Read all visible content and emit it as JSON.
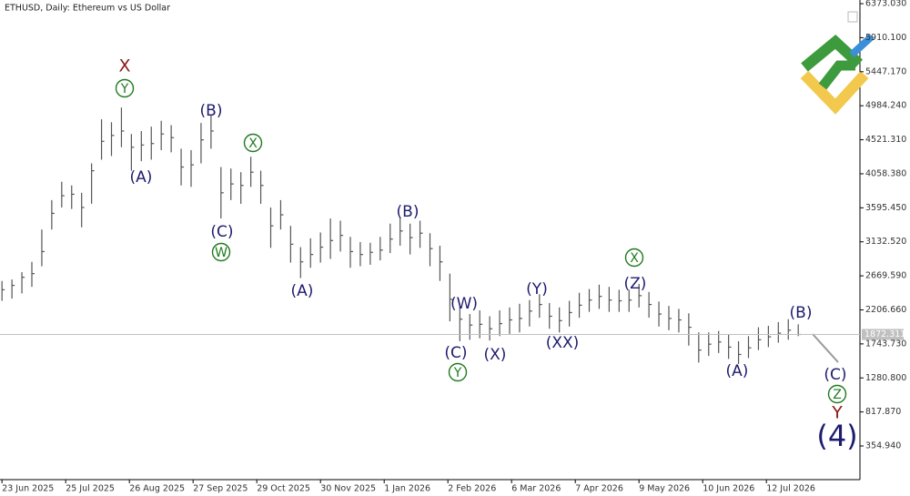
{
  "chart_data": {
    "type": "hlc",
    "title": "ETHUSD, Daily:  Ethereum vs US Dollar",
    "color": "#555555",
    "x": [
      "2025-06-23",
      "2025-06-28",
      "2025-07-03",
      "2025-07-08",
      "2025-07-13",
      "2025-07-18",
      "2025-07-23",
      "2025-07-28",
      "2025-08-02",
      "2025-08-07",
      "2025-08-12",
      "2025-08-17",
      "2025-08-22",
      "2025-08-27",
      "2025-09-01",
      "2025-09-06",
      "2025-09-11",
      "2025-09-16",
      "2025-09-21",
      "2025-09-26",
      "2025-10-01",
      "2025-10-06",
      "2025-10-11",
      "2025-10-16",
      "2025-10-21",
      "2025-10-26",
      "2025-10-31",
      "2025-11-05",
      "2025-11-10",
      "2025-11-15",
      "2025-11-20",
      "2025-11-25",
      "2025-11-30",
      "2025-12-05",
      "2025-12-10",
      "2025-12-15",
      "2025-12-20",
      "2025-12-25",
      "2025-12-30",
      "2026-01-04",
      "2026-01-09",
      "2026-01-14",
      "2026-01-19",
      "2026-01-24",
      "2026-01-29",
      "2026-02-03",
      "2026-02-08",
      "2026-02-13",
      "2026-02-18",
      "2026-02-23",
      "2026-02-28",
      "2026-03-05",
      "2026-03-10",
      "2026-03-15",
      "2026-03-20",
      "2026-03-25",
      "2026-03-30",
      "2026-04-04",
      "2026-04-09",
      "2026-04-14",
      "2026-04-19",
      "2026-04-24",
      "2026-04-29",
      "2026-05-04",
      "2026-05-09",
      "2026-05-14",
      "2026-05-19",
      "2026-05-24",
      "2026-05-29",
      "2026-06-03",
      "2026-06-08",
      "2026-06-13",
      "2026-06-18",
      "2026-06-23",
      "2026-06-28",
      "2026-07-03",
      "2026-07-08",
      "2026-07-13",
      "2026-07-18",
      "2026-07-23",
      "2026-07-28"
    ],
    "high": [
      2600,
      2620,
      2720,
      2860,
      3300,
      3700,
      3950,
      3900,
      3800,
      4200,
      4800,
      4760,
      4960,
      4600,
      4640,
      4700,
      4780,
      4720,
      4400,
      4380,
      4750,
      4850,
      4150,
      4130,
      4080,
      4290,
      4100,
      3600,
      3700,
      3350,
      3060,
      3180,
      3260,
      3450,
      3420,
      3200,
      3130,
      3120,
      3200,
      3380,
      3460,
      3380,
      3420,
      3250,
      3080,
      2700,
      2250,
      2150,
      2200,
      2120,
      2200,
      2240,
      2290,
      2340,
      2420,
      2300,
      2240,
      2330,
      2440,
      2490,
      2550,
      2520,
      2480,
      2480,
      2560,
      2450,
      2320,
      2260,
      2220,
      2160,
      1900,
      1900,
      1920,
      1870,
      1780,
      1850,
      1970,
      1990,
      2040,
      2080,
      2010
    ],
    "low": [
      2330,
      2360,
      2430,
      2520,
      2800,
      3300,
      3600,
      3580,
      3330,
      3650,
      4250,
      4300,
      4420,
      4100,
      4230,
      4250,
      4380,
      4350,
      3900,
      3880,
      4200,
      4400,
      3450,
      3700,
      3650,
      3880,
      3650,
      3050,
      3300,
      2850,
      2640,
      2780,
      2850,
      2900,
      3000,
      2780,
      2800,
      2820,
      2880,
      2980,
      3080,
      2960,
      3050,
      2800,
      2600,
      2050,
      1780,
      1800,
      1820,
      1790,
      1850,
      1880,
      1900,
      1980,
      2100,
      1950,
      1900,
      1980,
      2100,
      2180,
      2220,
      2180,
      2180,
      2180,
      2240,
      2100,
      1980,
      1930,
      1900,
      1720,
      1490,
      1580,
      1620,
      1540,
      1470,
      1550,
      1660,
      1700,
      1760,
      1800,
      1850
    ],
    "close": [
      2480,
      2540,
      2650,
      2700,
      3000,
      3520,
      3760,
      3780,
      3600,
      4100,
      4500,
      4580,
      4640,
      4420,
      4450,
      4470,
      4600,
      4550,
      4150,
      4180,
      4520,
      4640,
      3800,
      3920,
      3900,
      4080,
      3900,
      3350,
      3500,
      3100,
      2860,
      2960,
      3060,
      3150,
      3220,
      3000,
      2960,
      2990,
      3020,
      3170,
      3280,
      3190,
      3250,
      3040,
      2860,
      2350,
      2080,
      2000,
      2010,
      1950,
      2020,
      2070,
      2090,
      2190,
      2280,
      2120,
      2060,
      2170,
      2270,
      2340,
      2390,
      2340,
      2330,
      2340,
      2400,
      2280,
      2150,
      2090,
      2070,
      1970,
      1660,
      1740,
      1770,
      1700,
      1600,
      1690,
      1800,
      1840,
      1890,
      1930,
      1872.311
    ],
    "last_price": 1872.311,
    "xlim": [
      "2025-06-22",
      "2026-08-28"
    ],
    "xticks": [
      {
        "value": "2025-06-23",
        "label": "23 Jun 2025"
      },
      {
        "value": "2025-07-25",
        "label": "25 Jul 2025"
      },
      {
        "value": "2025-08-26",
        "label": "26 Aug 2025"
      },
      {
        "value": "2025-09-27",
        "label": "27 Sep 2025"
      },
      {
        "value": "2025-10-29",
        "label": "29 Oct 2025"
      },
      {
        "value": "2025-11-30",
        "label": "30 Nov 2025"
      },
      {
        "value": "2026-01-01",
        "label": "1 Jan 2026"
      },
      {
        "value": "2026-02-02",
        "label": "2 Feb 2026"
      },
      {
        "value": "2026-03-06",
        "label": "6 Mar 2026"
      },
      {
        "value": "2026-04-07",
        "label": "7 Apr 2026"
      },
      {
        "value": "2026-05-09",
        "label": "9 May 2026"
      },
      {
        "value": "2026-06-10",
        "label": "10 Jun 2026"
      },
      {
        "value": "2026-07-12",
        "label": "12 Jul 2026"
      }
    ],
    "ylim": [
      -103,
      6423
    ],
    "yticks": [
      {
        "value": 6373.03,
        "label": "6373.030"
      },
      {
        "value": 5910.1,
        "label": "5910.100"
      },
      {
        "value": 5447.17,
        "label": "5447.170"
      },
      {
        "value": 4984.24,
        "label": "4984.240"
      },
      {
        "value": 4521.31,
        "label": "4521.310"
      },
      {
        "value": 4058.38,
        "label": "4058.380"
      },
      {
        "value": 3595.45,
        "label": "3595.450"
      },
      {
        "value": 3132.52,
        "label": "3132.520"
      },
      {
        "value": 2669.59,
        "label": "2669.590"
      },
      {
        "value": 2206.66,
        "label": "2206.660"
      },
      {
        "value": 1743.73,
        "label": "1743.730"
      },
      {
        "value": 1280.8,
        "label": "1280.800"
      },
      {
        "value": 817.87,
        "label": "817.870"
      },
      {
        "value": 354.94,
        "label": "354.940"
      }
    ],
    "annotations": [
      {
        "text": "X",
        "style": "major"
      },
      {
        "text": "Y",
        "style": "circle"
      },
      {
        "text": "(A)",
        "style": "wave"
      },
      {
        "text": "(B)",
        "style": "wave"
      },
      {
        "text": "X",
        "style": "circle"
      },
      {
        "text": "(C)",
        "style": "wave"
      },
      {
        "text": "W",
        "style": "circle"
      },
      {
        "text": "(A)",
        "style": "wave"
      },
      {
        "text": "(B)",
        "style": "wave"
      },
      {
        "text": "(W)",
        "style": "wave"
      },
      {
        "text": "(C)",
        "style": "wave"
      },
      {
        "text": "Y",
        "style": "circle"
      },
      {
        "text": "(X)",
        "style": "wave"
      },
      {
        "text": "(Y)",
        "style": "wave"
      },
      {
        "text": "(XX)",
        "style": "wave"
      },
      {
        "text": "X",
        "style": "circle"
      },
      {
        "text": "(Z)",
        "style": "wave"
      },
      {
        "text": "(A)",
        "style": "wave"
      },
      {
        "text": "(B)",
        "style": "wave"
      },
      {
        "text": "(C)",
        "style": "wave"
      },
      {
        "text": "Z",
        "style": "circle"
      },
      {
        "text": "Y",
        "style": "major"
      },
      {
        "text": "(4)",
        "style": "degree"
      }
    ]
  }
}
